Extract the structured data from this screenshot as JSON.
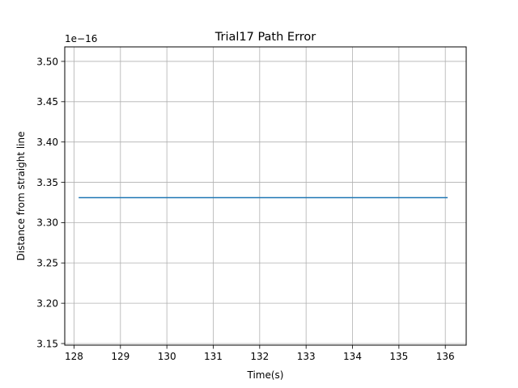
{
  "chart_data": {
    "type": "line",
    "title": "Trial17 Path Error",
    "xlabel": "Time(s)",
    "ylabel": "Distance from straight line",
    "y_offset_label": "1e−16",
    "xlim": [
      127.8,
      136.45
    ],
    "ylim": [
      3.148,
      3.518
    ],
    "x_ticks": [
      128,
      129,
      130,
      131,
      132,
      133,
      134,
      135,
      136
    ],
    "x_tick_labels": [
      "128",
      "129",
      "130",
      "131",
      "132",
      "133",
      "134",
      "135",
      "136"
    ],
    "y_ticks": [
      3.15,
      3.2,
      3.25,
      3.3,
      3.35,
      3.4,
      3.45,
      3.5
    ],
    "y_tick_labels": [
      "3.15",
      "3.20",
      "3.25",
      "3.30",
      "3.35",
      "3.40",
      "3.45",
      "3.50"
    ],
    "grid": true,
    "series": [
      {
        "color": "#1f77b4",
        "x": [
          128.1,
          136.05
        ],
        "y": [
          3.331,
          3.331
        ]
      }
    ]
  }
}
